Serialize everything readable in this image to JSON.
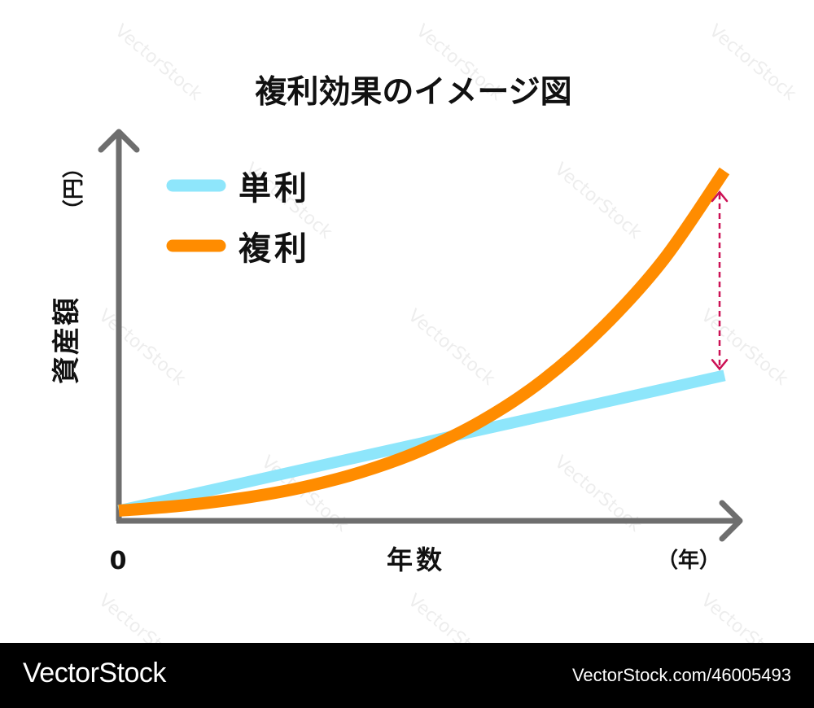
{
  "chart_data": {
    "type": "line",
    "title": "複利効果のイメージ図",
    "ylabel": "資産額",
    "yunit": "（円）",
    "xlabel": "年数",
    "xunit": "（年）",
    "origin_label": "0",
    "x": [
      0,
      1,
      2,
      3,
      4,
      5,
      6,
      7,
      8,
      9,
      10
    ],
    "ylim": [
      0,
      100
    ],
    "xlim": [
      0,
      10
    ],
    "series": [
      {
        "name": "単利",
        "color": "#8ee6fb",
        "values": [
          2,
          5.9,
          9.8,
          13.7,
          17.6,
          21.5,
          25.4,
          29.3,
          33.2,
          37.1,
          41
        ]
      },
      {
        "name": "複利",
        "color": "#ff8c00",
        "values": [
          2,
          3.4,
          5.5,
          8.6,
          13.1,
          19.4,
          28,
          39.6,
          55,
          74.5,
          100
        ]
      }
    ],
    "annotation": {
      "type": "dashed-double-arrow",
      "at_x": 10,
      "color": "#cc1155"
    },
    "legend": "top-left",
    "grid": false
  },
  "watermark": {
    "text": "VectorStock"
  },
  "footer": {
    "brand": "VectorStock",
    "image_id": "VectorStock.com/46005493"
  }
}
